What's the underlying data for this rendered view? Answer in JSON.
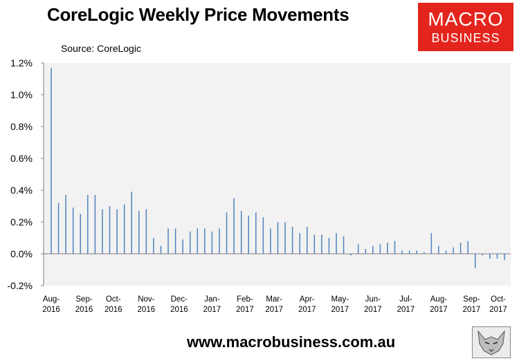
{
  "header": {
    "title": "CoreLogic Weekly Price Movements",
    "source": "Source: CoreLogic"
  },
  "logo": {
    "line1": "MACRO",
    "line2": "BUSINESS",
    "color": "#e4251d"
  },
  "footer": {
    "url": "www.macrobusiness.com.au"
  },
  "chart_data": {
    "type": "bar",
    "title": "CoreLogic Weekly Price Movements",
    "xlabel": "",
    "ylabel": "",
    "ylim": [
      -0.2,
      1.2
    ],
    "yticks": [
      "-0.2%",
      "0.0%",
      "0.2%",
      "0.4%",
      "0.6%",
      "0.8%",
      "1.0%",
      "1.2%"
    ],
    "ytick_values": [
      -0.2,
      0.0,
      0.2,
      0.4,
      0.6,
      0.8,
      1.0,
      1.2
    ],
    "xticks": [
      {
        "l1": "Aug-",
        "l2": "2016",
        "week": 0
      },
      {
        "l1": "Sep-",
        "l2": "2016",
        "week": 4.5
      },
      {
        "l1": "Oct-",
        "l2": "2016",
        "week": 8.5
      },
      {
        "l1": "Nov-",
        "l2": "2016",
        "week": 13
      },
      {
        "l1": "Dec-",
        "l2": "2016",
        "week": 17.5
      },
      {
        "l1": "Jan-",
        "l2": "2017",
        "week": 22
      },
      {
        "l1": "Feb-",
        "l2": "2017",
        "week": 26.5
      },
      {
        "l1": "Mar-",
        "l2": "2017",
        "week": 30.5
      },
      {
        "l1": "Apr-",
        "l2": "2017",
        "week": 35
      },
      {
        "l1": "May-",
        "l2": "2017",
        "week": 39.5
      },
      {
        "l1": "Jun-",
        "l2": "2017",
        "week": 44
      },
      {
        "l1": "Jul-",
        "l2": "2017",
        "week": 48.5
      },
      {
        "l1": "Aug-",
        "l2": "2017",
        "week": 53
      },
      {
        "l1": "Sep-",
        "l2": "2017",
        "week": 57.5
      },
      {
        "l1": "Oct-",
        "l2": "2017",
        "week": 62
      }
    ],
    "grid": false,
    "background": "#f2f2f2",
    "bar_color": "#4f81bd",
    "values": [
      1.17,
      0.32,
      0.37,
      0.29,
      0.25,
      0.37,
      0.37,
      0.28,
      0.3,
      0.28,
      0.31,
      0.39,
      0.27,
      0.28,
      0.1,
      0.05,
      0.16,
      0.16,
      0.09,
      0.14,
      0.16,
      0.16,
      0.14,
      0.16,
      0.26,
      0.35,
      0.27,
      0.24,
      0.26,
      0.23,
      0.16,
      0.2,
      0.2,
      0.17,
      0.13,
      0.17,
      0.12,
      0.12,
      0.1,
      0.13,
      0.11,
      -0.01,
      0.06,
      0.03,
      0.05,
      0.06,
      0.07,
      0.08,
      0.02,
      0.02,
      0.02,
      0.01,
      0.13,
      0.05,
      0.02,
      0.04,
      0.07,
      0.08,
      -0.09,
      -0.01,
      -0.03,
      -0.03,
      -0.04
    ]
  }
}
